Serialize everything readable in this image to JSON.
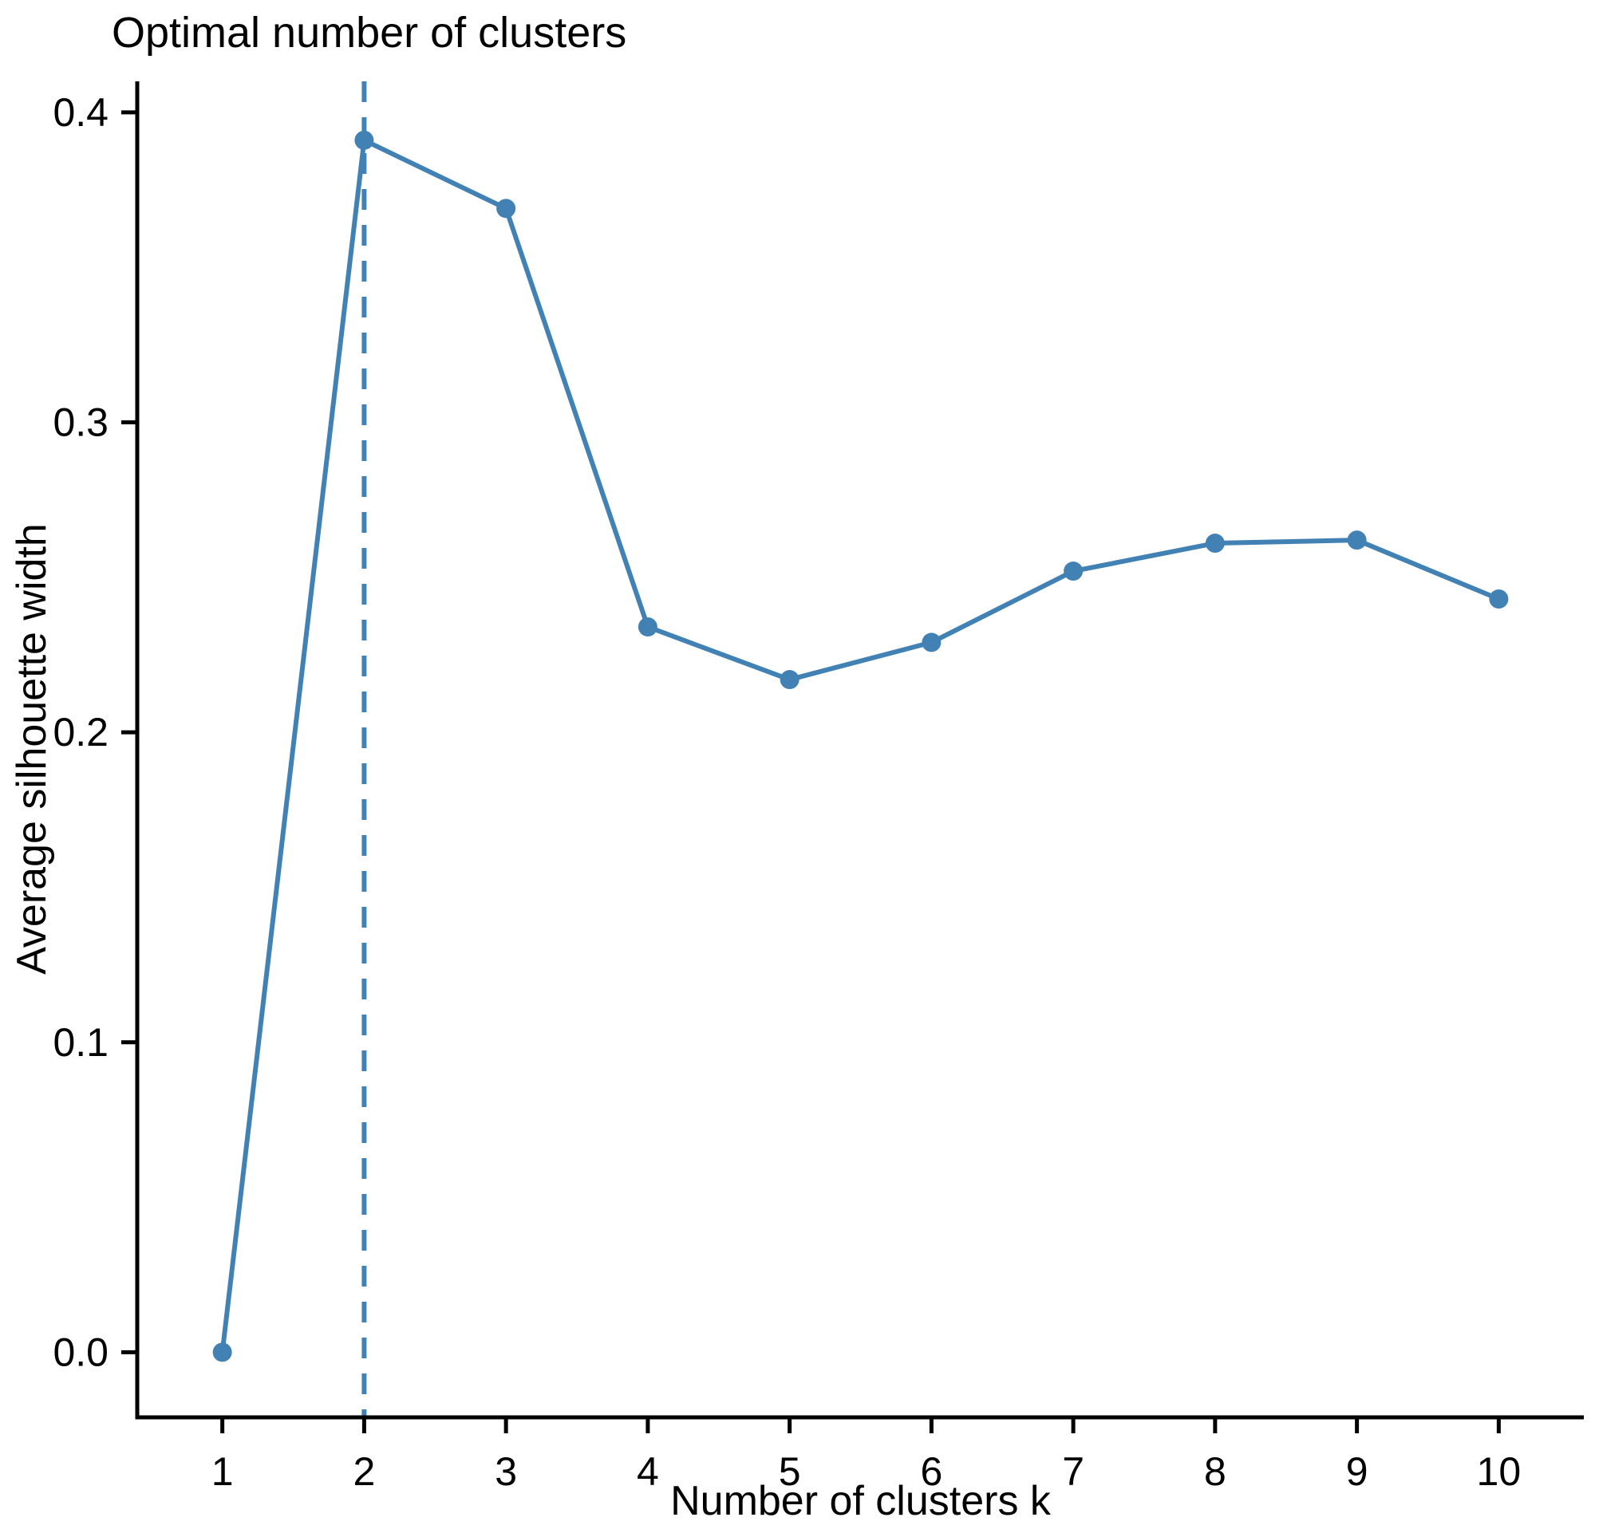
{
  "figure": {
    "background": "#ffffff"
  },
  "chart_data": {
    "type": "line",
    "title": "Optimal number of clusters",
    "xlabel": "Number of clusters k",
    "ylabel": "Average silhouette width",
    "x": [
      1,
      2,
      3,
      4,
      5,
      6,
      7,
      8,
      9,
      10
    ],
    "values": [
      0.0,
      0.391,
      0.369,
      0.234,
      0.217,
      0.229,
      0.252,
      0.261,
      0.262,
      0.243
    ],
    "series_name": "Average silhouette width",
    "xtick_labels": [
      "1",
      "2",
      "3",
      "4",
      "5",
      "6",
      "7",
      "8",
      "9",
      "10"
    ],
    "xtick_values": [
      1,
      2,
      3,
      4,
      5,
      6,
      7,
      8,
      9,
      10
    ],
    "ytick_labels": [
      "0.0",
      "0.1",
      "0.2",
      "0.3",
      "0.4"
    ],
    "ytick_values": [
      0.0,
      0.1,
      0.2,
      0.3,
      0.4
    ],
    "xlim": [
      0.4,
      10.6
    ],
    "ylim": [
      -0.021,
      0.41
    ],
    "grid": false,
    "legend_position": "none",
    "vline": {
      "x": 2,
      "style": "dashed",
      "meaning": "optimal k"
    },
    "optimal_k": 2,
    "colors": {
      "line": "#4181B4",
      "point": "#4181B4",
      "vline": "#4181B4",
      "axis": "#000000",
      "tick_text": "#000000",
      "background": "#ffffff"
    }
  }
}
